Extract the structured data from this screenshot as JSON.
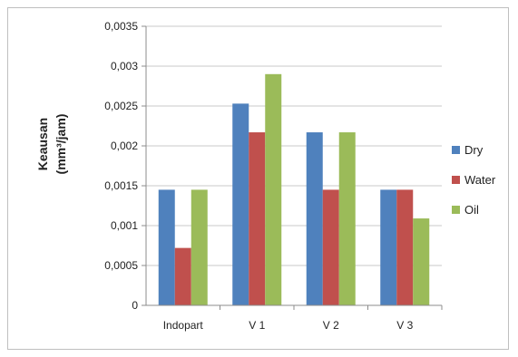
{
  "chart_data": {
    "type": "bar",
    "title": "",
    "xlabel": "",
    "ylabel_lines": [
      "Keausan",
      "(mm³/jam)"
    ],
    "categories": [
      "Indopart",
      "V 1",
      "V 2",
      "V 3"
    ],
    "series": [
      {
        "name": "Dry",
        "color": "#4f81bd",
        "values": [
          0.00145,
          0.00253,
          0.00217,
          0.00145
        ]
      },
      {
        "name": "Water",
        "color": "#c0504d",
        "values": [
          0.00072,
          0.00217,
          0.00145,
          0.00145
        ]
      },
      {
        "name": "Oil",
        "color": "#9bbb59",
        "values": [
          0.00145,
          0.0029,
          0.00217,
          0.00109
        ]
      }
    ],
    "ylim": [
      0,
      0.0035
    ],
    "yticks": [
      0,
      0.0005,
      0.001,
      0.0015,
      0.002,
      0.0025,
      0.003,
      0.0035
    ],
    "ytick_labels": [
      "0",
      "0,0005",
      "0,001",
      "0,0015",
      "0,002",
      "0,0025",
      "0,003",
      "0,0035"
    ],
    "grid": true,
    "legend_position": "right"
  }
}
